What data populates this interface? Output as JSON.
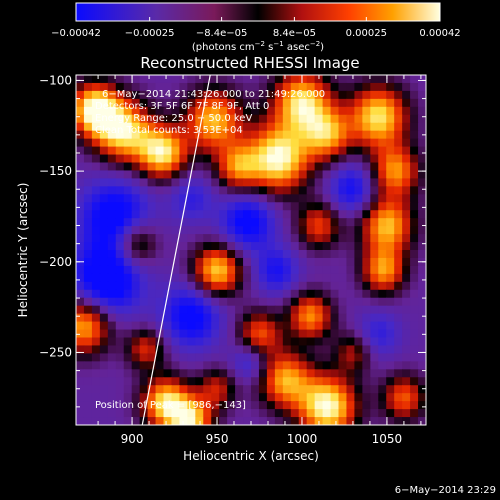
{
  "chart_data": {
    "type": "heatmap",
    "title": "Reconstructed RHESSI Image",
    "xlabel": "Heliocentric X (arcsec)",
    "ylabel": "Heliocentric Y (arcsec)",
    "xlim": [
      867,
      1073
    ],
    "ylim": [
      -290,
      -97
    ],
    "x_ticks": [
      900,
      950,
      1000,
      1050
    ],
    "y_ticks": [
      -100,
      -150,
      -200,
      -250
    ],
    "x_tick_labels": [
      "900",
      "950",
      "1000",
      "1050"
    ],
    "y_tick_labels": [
      "−100",
      "−150",
      "−200",
      "−250"
    ],
    "colorbar": {
      "range": [
        -0.00042,
        0.00042
      ],
      "ticks": [
        -0.00042,
        -0.00025,
        -8.4e-05,
        8.4e-05,
        0.00025,
        0.00042
      ],
      "tick_labels": [
        "−0.00042",
        "−0.00025",
        "−8.4e−05",
        "8.4e−05",
        "0.00025",
        "0.00042"
      ],
      "unit_prefix": "(photons cm",
      "unit_sup1": "−2",
      "unit_mid": " s",
      "unit_sup2": "−1",
      "unit_mid2": " asec",
      "unit_sup3": "−2",
      "unit_suffix": ")"
    },
    "annotations": {
      "time_range": "6−May−2014 21:43:26.000 to 21:49:26.000",
      "detectors": "Detectors: 3F 5F 6F 7F 8F 9F, Att 0",
      "energy": "Energy Range: 25.0 − 50.0 keV",
      "method": "Clean     Total counts: 3.53E+04",
      "peak": "Position of Peak = [986,−143]"
    },
    "limb_line": {
      "x": [
        906,
        946
      ],
      "y": [
        -290,
        -97
      ]
    },
    "sources": [
      {
        "x": 878,
        "y": -116,
        "amp": 1.0,
        "sigma": 10
      },
      {
        "x": 895,
        "y": -128,
        "amp": 0.9,
        "sigma": 12
      },
      {
        "x": 918,
        "y": -140,
        "amp": 0.9,
        "sigma": 10
      },
      {
        "x": 902,
        "y": -190,
        "amp": 0.55,
        "sigma": 9
      },
      {
        "x": 872,
        "y": -235,
        "amp": 0.8,
        "sigma": 11
      },
      {
        "x": 908,
        "y": -248,
        "amp": 0.5,
        "sigma": 8
      },
      {
        "x": 920,
        "y": -278,
        "amp": 0.9,
        "sigma": 10
      },
      {
        "x": 935,
        "y": -288,
        "amp": 0.8,
        "sigma": 9
      },
      {
        "x": 948,
        "y": -122,
        "amp": 0.8,
        "sigma": 12
      },
      {
        "x": 962,
        "y": -148,
        "amp": 0.6,
        "sigma": 9
      },
      {
        "x": 986,
        "y": -143,
        "amp": 1.0,
        "sigma": 13
      },
      {
        "x": 1000,
        "y": -112,
        "amp": 0.9,
        "sigma": 12
      },
      {
        "x": 1015,
        "y": -130,
        "amp": 0.7,
        "sigma": 10
      },
      {
        "x": 1045,
        "y": -120,
        "amp": 0.9,
        "sigma": 12
      },
      {
        "x": 1055,
        "y": -150,
        "amp": 0.7,
        "sigma": 10
      },
      {
        "x": 1050,
        "y": -180,
        "amp": 0.8,
        "sigma": 11
      },
      {
        "x": 1048,
        "y": -205,
        "amp": 0.7,
        "sigma": 9
      },
      {
        "x": 950,
        "y": -205,
        "amp": 0.85,
        "sigma": 10
      },
      {
        "x": 975,
        "y": -240,
        "amp": 0.6,
        "sigma": 9
      },
      {
        "x": 1010,
        "y": -180,
        "amp": 0.55,
        "sigma": 9
      },
      {
        "x": 1005,
        "y": -230,
        "amp": 0.7,
        "sigma": 9
      },
      {
        "x": 990,
        "y": -265,
        "amp": 0.75,
        "sigma": 11
      },
      {
        "x": 1015,
        "y": -280,
        "amp": 1.0,
        "sigma": 12
      },
      {
        "x": 1060,
        "y": -275,
        "amp": 0.6,
        "sigma": 9
      },
      {
        "x": 1030,
        "y": -250,
        "amp": 0.4,
        "sigma": 8
      },
      {
        "x": 950,
        "y": -270,
        "amp": 0.45,
        "sigma": 8
      },
      {
        "x": 890,
        "y": -175,
        "amp": -0.6,
        "sigma": 14
      },
      {
        "x": 885,
        "y": -210,
        "amp": -0.7,
        "sigma": 14
      },
      {
        "x": 935,
        "y": -230,
        "amp": -0.55,
        "sigma": 12
      },
      {
        "x": 968,
        "y": -178,
        "amp": -0.55,
        "sigma": 11
      },
      {
        "x": 985,
        "y": -205,
        "amp": -0.4,
        "sigma": 9
      },
      {
        "x": 1030,
        "y": -160,
        "amp": -0.45,
        "sigma": 10
      },
      {
        "x": 970,
        "y": -255,
        "amp": -0.35,
        "sigma": 8
      },
      {
        "x": 1045,
        "y": -240,
        "amp": -0.3,
        "sigma": 9
      },
      {
        "x": 935,
        "y": -165,
        "amp": -0.3,
        "sigma": 9
      }
    ]
  },
  "footer": {
    "timestamp": "6−May−2014 23:29"
  }
}
